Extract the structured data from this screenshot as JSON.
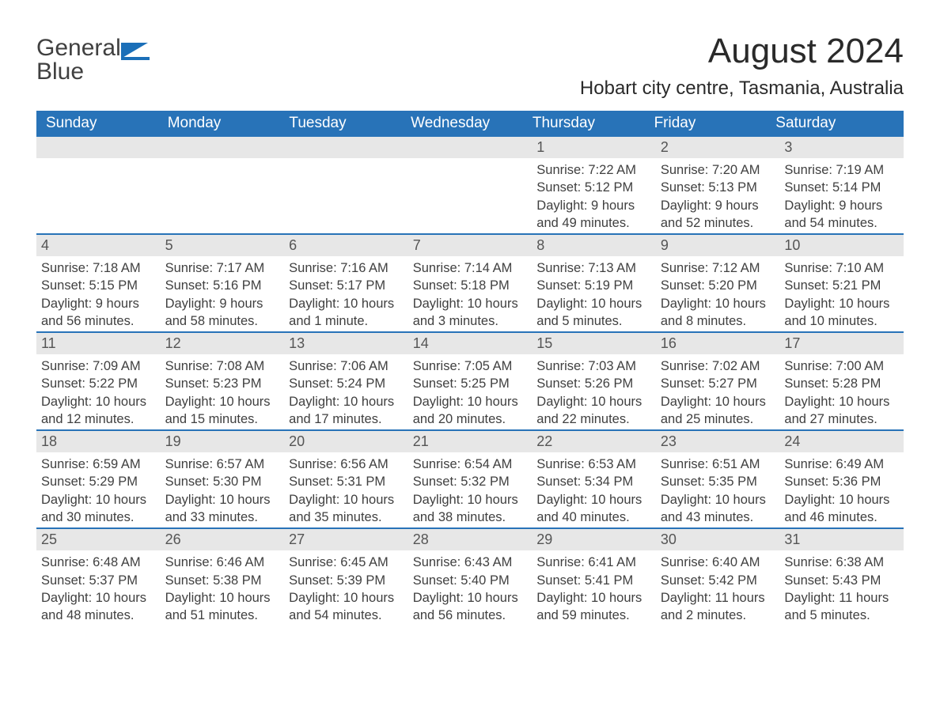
{
  "logo": {
    "word1": "General",
    "word2": "Blue"
  },
  "title": "August 2024",
  "location": "Hobart city centre, Tasmania, Australia",
  "colors": {
    "header_bg": "#2873b8",
    "header_text": "#ffffff",
    "date_bar_bg": "#e7e7e7",
    "date_bar_text": "#555555",
    "body_text": "#404040",
    "rule": "#2873b8",
    "logo_accent": "#1b6fb8",
    "logo_dark": "#404040",
    "page_bg": "#ffffff"
  },
  "typography": {
    "title_fontsize": 44,
    "location_fontsize": 24,
    "header_fontsize": 19,
    "date_fontsize": 18,
    "body_fontsize": 16.5
  },
  "weekday_labels": [
    "Sunday",
    "Monday",
    "Tuesday",
    "Wednesday",
    "Thursday",
    "Friday",
    "Saturday"
  ],
  "weeks": [
    [
      null,
      null,
      null,
      null,
      {
        "date": "1",
        "sunrise": "Sunrise: 7:22 AM",
        "sunset": "Sunset: 5:12 PM",
        "daylight": "Daylight: 9 hours and 49 minutes."
      },
      {
        "date": "2",
        "sunrise": "Sunrise: 7:20 AM",
        "sunset": "Sunset: 5:13 PM",
        "daylight": "Daylight: 9 hours and 52 minutes."
      },
      {
        "date": "3",
        "sunrise": "Sunrise: 7:19 AM",
        "sunset": "Sunset: 5:14 PM",
        "daylight": "Daylight: 9 hours and 54 minutes."
      }
    ],
    [
      {
        "date": "4",
        "sunrise": "Sunrise: 7:18 AM",
        "sunset": "Sunset: 5:15 PM",
        "daylight": "Daylight: 9 hours and 56 minutes."
      },
      {
        "date": "5",
        "sunrise": "Sunrise: 7:17 AM",
        "sunset": "Sunset: 5:16 PM",
        "daylight": "Daylight: 9 hours and 58 minutes."
      },
      {
        "date": "6",
        "sunrise": "Sunrise: 7:16 AM",
        "sunset": "Sunset: 5:17 PM",
        "daylight": "Daylight: 10 hours and 1 minute."
      },
      {
        "date": "7",
        "sunrise": "Sunrise: 7:14 AM",
        "sunset": "Sunset: 5:18 PM",
        "daylight": "Daylight: 10 hours and 3 minutes."
      },
      {
        "date": "8",
        "sunrise": "Sunrise: 7:13 AM",
        "sunset": "Sunset: 5:19 PM",
        "daylight": "Daylight: 10 hours and 5 minutes."
      },
      {
        "date": "9",
        "sunrise": "Sunrise: 7:12 AM",
        "sunset": "Sunset: 5:20 PM",
        "daylight": "Daylight: 10 hours and 8 minutes."
      },
      {
        "date": "10",
        "sunrise": "Sunrise: 7:10 AM",
        "sunset": "Sunset: 5:21 PM",
        "daylight": "Daylight: 10 hours and 10 minutes."
      }
    ],
    [
      {
        "date": "11",
        "sunrise": "Sunrise: 7:09 AM",
        "sunset": "Sunset: 5:22 PM",
        "daylight": "Daylight: 10 hours and 12 minutes."
      },
      {
        "date": "12",
        "sunrise": "Sunrise: 7:08 AM",
        "sunset": "Sunset: 5:23 PM",
        "daylight": "Daylight: 10 hours and 15 minutes."
      },
      {
        "date": "13",
        "sunrise": "Sunrise: 7:06 AM",
        "sunset": "Sunset: 5:24 PM",
        "daylight": "Daylight: 10 hours and 17 minutes."
      },
      {
        "date": "14",
        "sunrise": "Sunrise: 7:05 AM",
        "sunset": "Sunset: 5:25 PM",
        "daylight": "Daylight: 10 hours and 20 minutes."
      },
      {
        "date": "15",
        "sunrise": "Sunrise: 7:03 AM",
        "sunset": "Sunset: 5:26 PM",
        "daylight": "Daylight: 10 hours and 22 minutes."
      },
      {
        "date": "16",
        "sunrise": "Sunrise: 7:02 AM",
        "sunset": "Sunset: 5:27 PM",
        "daylight": "Daylight: 10 hours and 25 minutes."
      },
      {
        "date": "17",
        "sunrise": "Sunrise: 7:00 AM",
        "sunset": "Sunset: 5:28 PM",
        "daylight": "Daylight: 10 hours and 27 minutes."
      }
    ],
    [
      {
        "date": "18",
        "sunrise": "Sunrise: 6:59 AM",
        "sunset": "Sunset: 5:29 PM",
        "daylight": "Daylight: 10 hours and 30 minutes."
      },
      {
        "date": "19",
        "sunrise": "Sunrise: 6:57 AM",
        "sunset": "Sunset: 5:30 PM",
        "daylight": "Daylight: 10 hours and 33 minutes."
      },
      {
        "date": "20",
        "sunrise": "Sunrise: 6:56 AM",
        "sunset": "Sunset: 5:31 PM",
        "daylight": "Daylight: 10 hours and 35 minutes."
      },
      {
        "date": "21",
        "sunrise": "Sunrise: 6:54 AM",
        "sunset": "Sunset: 5:32 PM",
        "daylight": "Daylight: 10 hours and 38 minutes."
      },
      {
        "date": "22",
        "sunrise": "Sunrise: 6:53 AM",
        "sunset": "Sunset: 5:34 PM",
        "daylight": "Daylight: 10 hours and 40 minutes."
      },
      {
        "date": "23",
        "sunrise": "Sunrise: 6:51 AM",
        "sunset": "Sunset: 5:35 PM",
        "daylight": "Daylight: 10 hours and 43 minutes."
      },
      {
        "date": "24",
        "sunrise": "Sunrise: 6:49 AM",
        "sunset": "Sunset: 5:36 PM",
        "daylight": "Daylight: 10 hours and 46 minutes."
      }
    ],
    [
      {
        "date": "25",
        "sunrise": "Sunrise: 6:48 AM",
        "sunset": "Sunset: 5:37 PM",
        "daylight": "Daylight: 10 hours and 48 minutes."
      },
      {
        "date": "26",
        "sunrise": "Sunrise: 6:46 AM",
        "sunset": "Sunset: 5:38 PM",
        "daylight": "Daylight: 10 hours and 51 minutes."
      },
      {
        "date": "27",
        "sunrise": "Sunrise: 6:45 AM",
        "sunset": "Sunset: 5:39 PM",
        "daylight": "Daylight: 10 hours and 54 minutes."
      },
      {
        "date": "28",
        "sunrise": "Sunrise: 6:43 AM",
        "sunset": "Sunset: 5:40 PM",
        "daylight": "Daylight: 10 hours and 56 minutes."
      },
      {
        "date": "29",
        "sunrise": "Sunrise: 6:41 AM",
        "sunset": "Sunset: 5:41 PM",
        "daylight": "Daylight: 10 hours and 59 minutes."
      },
      {
        "date": "30",
        "sunrise": "Sunrise: 6:40 AM",
        "sunset": "Sunset: 5:42 PM",
        "daylight": "Daylight: 11 hours and 2 minutes."
      },
      {
        "date": "31",
        "sunrise": "Sunrise: 6:38 AM",
        "sunset": "Sunset: 5:43 PM",
        "daylight": "Daylight: 11 hours and 5 minutes."
      }
    ]
  ]
}
